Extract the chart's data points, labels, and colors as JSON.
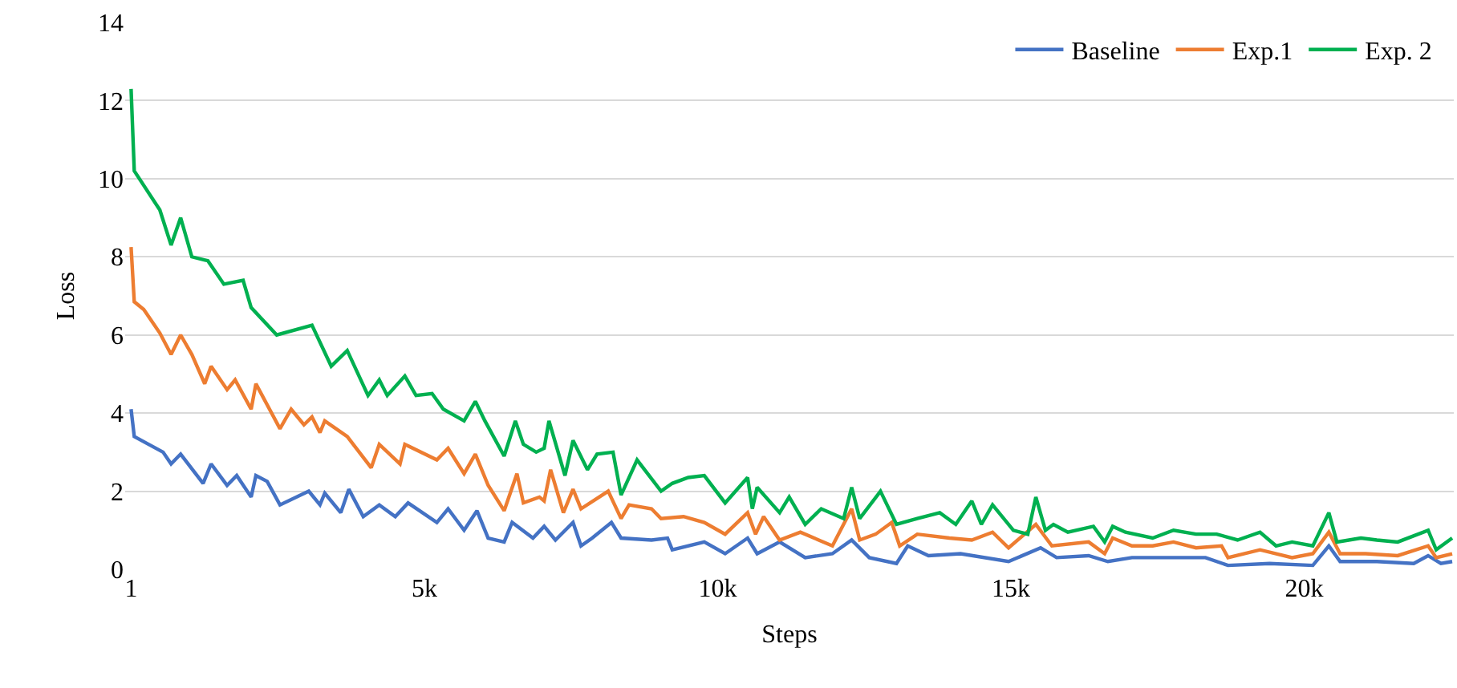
{
  "chart_data": {
    "type": "line",
    "xlabel": "Steps",
    "ylabel": "Loss",
    "xlim": [
      -100,
      22550
    ],
    "ylim": [
      0,
      14
    ],
    "xticks": [
      1,
      {
        "value": 5000,
        "label": "5k"
      },
      {
        "value": 10000,
        "label": "10k"
      },
      {
        "value": 15000,
        "label": "15k"
      },
      {
        "value": 20000,
        "label": "20k"
      }
    ],
    "yticks": [
      0,
      2,
      4,
      6,
      8,
      10,
      12,
      14
    ],
    "grid": "y",
    "legend": "top right",
    "marker": "none",
    "line_style": "solid",
    "series": [
      {
        "name": "Baseline",
        "color": "#4472c4",
        "x": [
          1,
          55,
          300,
          546,
          683,
          846,
          1229,
          1365,
          1638,
          1802,
          2048,
          2129,
          2321,
          2539,
          3030,
          3221,
          3303,
          3576,
          3713,
          3959,
          4232,
          4505,
          4723,
          5214,
          5405,
          5678,
          5897,
          6088,
          6361,
          6497,
          6852,
          7043,
          7235,
          7535,
          7671,
          7862,
          8190,
          8354,
          8873,
          9146,
          9227,
          9773,
          10128,
          10511,
          10674,
          11057,
          11493,
          11957,
          12285,
          12585,
          13049,
          13241,
          13595,
          14141,
          14960,
          15506,
          15779,
          16325,
          16653,
          17063,
          17690,
          18318,
          18701,
          19410,
          20147,
          20420,
          20612,
          21239,
          21867,
          22113,
          22331,
          22523
        ],
        "values": [
          4.1,
          3.4,
          3.2,
          3.0,
          2.7,
          2.95,
          2.2,
          2.7,
          2.15,
          2.4,
          1.85,
          2.4,
          2.25,
          1.65,
          2.0,
          1.65,
          1.95,
          1.45,
          2.05,
          1.35,
          1.65,
          1.35,
          1.7,
          1.2,
          1.55,
          1.0,
          1.5,
          0.8,
          0.7,
          1.2,
          0.8,
          1.1,
          0.75,
          1.2,
          0.6,
          0.8,
          1.2,
          0.8,
          0.75,
          0.8,
          0.5,
          0.7,
          0.4,
          0.8,
          0.4,
          0.7,
          0.3,
          0.4,
          0.75,
          0.3,
          0.15,
          0.6,
          0.35,
          0.4,
          0.2,
          0.55,
          0.3,
          0.35,
          0.2,
          0.3,
          0.3,
          0.3,
          0.1,
          0.15,
          0.1,
          0.6,
          0.2,
          0.2,
          0.15,
          0.35,
          0.15,
          0.2
        ]
      },
      {
        "name": "Exp.1",
        "color": "#ed7d31",
        "x": [
          1,
          55,
          218,
          491,
          683,
          846,
          1037,
          1256,
          1365,
          1638,
          1775,
          2048,
          2129,
          2539,
          2730,
          2948,
          3085,
          3221,
          3303,
          3686,
          4095,
          4232,
          4586,
          4668,
          5214,
          5405,
          5678,
          5870,
          6088,
          6361,
          6579,
          6689,
          6962,
          7043,
          7153,
          7371,
          7535,
          7671,
          8135,
          8354,
          8490,
          8873,
          9036,
          9419,
          9773,
          10128,
          10511,
          10647,
          10784,
          11057,
          11411,
          11957,
          12285,
          12422,
          12695,
          12968,
          13104,
          13404,
          13950,
          14333,
          14687,
          14960,
          15425,
          15698,
          16325,
          16598,
          16735,
          17063,
          17417,
          17772,
          18155,
          18591,
          18701,
          19247,
          19793,
          20147,
          20420,
          20612,
          21048,
          21594,
          22113,
          22250,
          22523
        ],
        "values": [
          8.25,
          6.85,
          6.65,
          6.05,
          5.5,
          6.0,
          5.5,
          4.75,
          5.2,
          4.6,
          4.85,
          4.1,
          4.75,
          3.6,
          4.1,
          3.7,
          3.9,
          3.5,
          3.8,
          3.4,
          2.6,
          3.2,
          2.7,
          3.2,
          2.8,
          3.1,
          2.45,
          2.95,
          2.15,
          1.5,
          2.45,
          1.7,
          1.85,
          1.75,
          2.55,
          1.45,
          2.05,
          1.55,
          2.0,
          1.3,
          1.65,
          1.55,
          1.3,
          1.35,
          1.2,
          0.9,
          1.45,
          0.9,
          1.35,
          0.75,
          0.95,
          0.6,
          1.55,
          0.75,
          0.9,
          1.2,
          0.6,
          0.9,
          0.8,
          0.75,
          0.95,
          0.55,
          1.15,
          0.6,
          0.7,
          0.4,
          0.8,
          0.6,
          0.6,
          0.7,
          0.55,
          0.6,
          0.3,
          0.5,
          0.3,
          0.4,
          0.95,
          0.4,
          0.4,
          0.35,
          0.6,
          0.3,
          0.4
        ]
      },
      {
        "name": "Exp. 2",
        "color": "#00b050",
        "x": [
          1,
          55,
          491,
          683,
          846,
          1037,
          1310,
          1583,
          1911,
          2048,
          2484,
          3085,
          3413,
          3686,
          4040,
          4232,
          4368,
          4668,
          4859,
          5132,
          5324,
          5678,
          5870,
          6033,
          6361,
          6552,
          6689,
          6907,
          7043,
          7125,
          7398,
          7535,
          7781,
          7944,
          8217,
          8354,
          8627,
          9036,
          9227,
          9500,
          9773,
          10128,
          10511,
          10592,
          10674,
          11057,
          11220,
          11493,
          11766,
          12149,
          12285,
          12422,
          12776,
          13049,
          13404,
          13787,
          14060,
          14333,
          14496,
          14687,
          15042,
          15288,
          15425,
          15588,
          15725,
          15971,
          16407,
          16598,
          16735,
          16953,
          17417,
          17772,
          18155,
          18509,
          18864,
          19247,
          19520,
          19793,
          20147,
          20420,
          20557,
          20966,
          21239,
          21594,
          22113,
          22250,
          22523
        ],
        "values": [
          12.3,
          10.2,
          9.2,
          8.3,
          9.0,
          8.0,
          7.9,
          7.3,
          7.4,
          6.7,
          6.0,
          6.25,
          5.2,
          5.6,
          4.45,
          4.85,
          4.45,
          4.95,
          4.45,
          4.5,
          4.1,
          3.8,
          4.3,
          3.8,
          2.9,
          3.8,
          3.2,
          3.0,
          3.1,
          3.8,
          2.4,
          3.3,
          2.55,
          2.95,
          3.0,
          1.9,
          2.8,
          2.0,
          2.2,
          2.35,
          2.4,
          1.7,
          2.35,
          1.55,
          2.1,
          1.45,
          1.85,
          1.15,
          1.55,
          1.3,
          2.1,
          1.3,
          2.0,
          1.15,
          1.3,
          1.45,
          1.15,
          1.75,
          1.15,
          1.65,
          1.0,
          0.9,
          1.85,
          1.0,
          1.15,
          0.95,
          1.1,
          0.7,
          1.1,
          0.95,
          0.8,
          1.0,
          0.9,
          0.9,
          0.75,
          0.95,
          0.6,
          0.7,
          0.6,
          1.45,
          0.7,
          0.8,
          0.75,
          0.7,
          1.0,
          0.5,
          0.8
        ]
      }
    ]
  }
}
